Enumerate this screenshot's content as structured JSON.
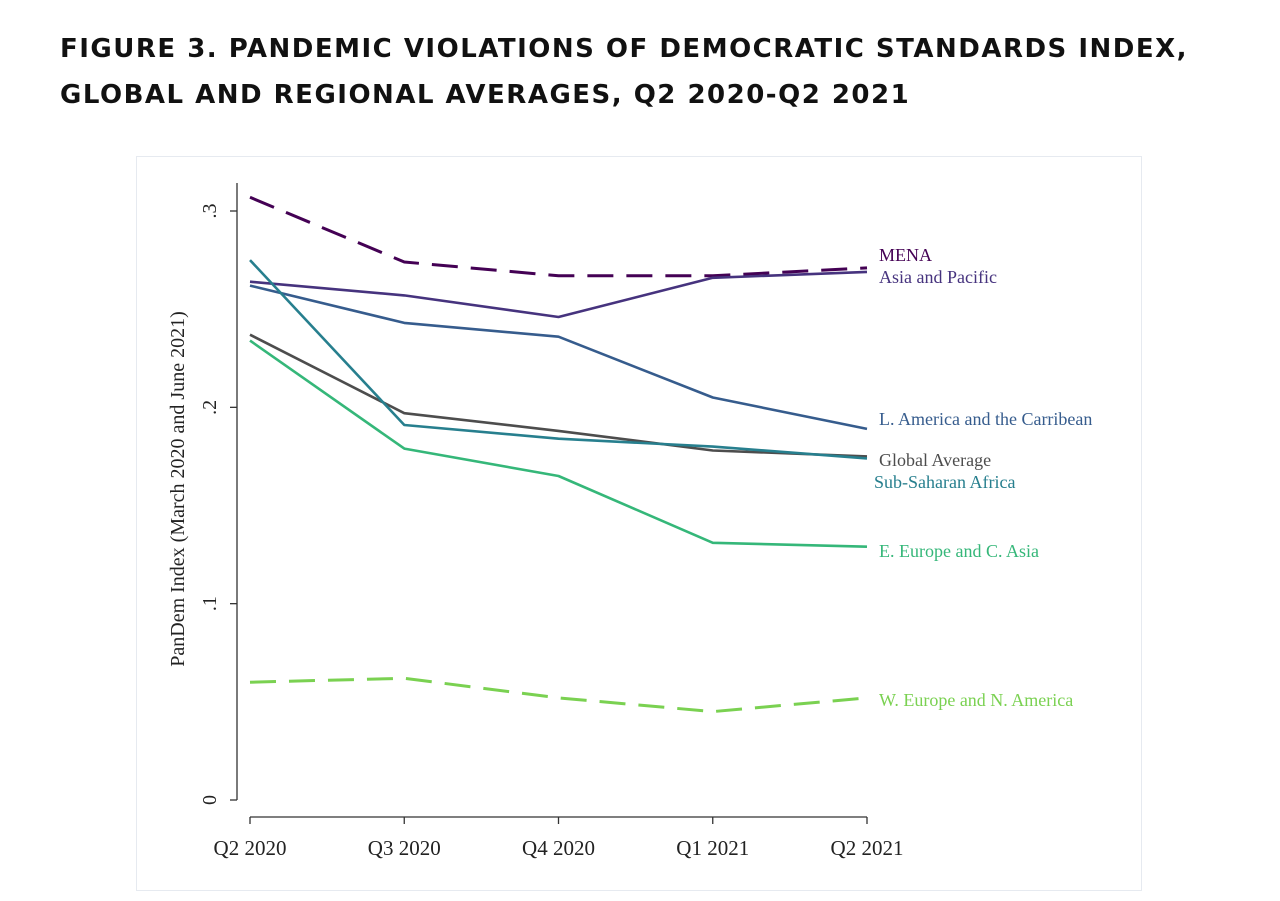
{
  "title_line1": "FIGURE 3. PANDEMIC VIOLATIONS OF DEMOCRATIC STANDARDS INDEX,",
  "title_line2": "GLOBAL AND REGIONAL AVERAGES, Q2 2020-Q2 2021",
  "chart_data": {
    "type": "line",
    "title": "FIGURE 3. PANDEMIC VIOLATIONS OF DEMOCRATIC STANDARDS INDEX, GLOBAL AND REGIONAL AVERAGES, Q2 2020-Q2 2021",
    "xlabel": "",
    "ylabel": "PanDem Index (March 2020 and June 2021)",
    "categories": [
      "Q2 2020",
      "Q3 2020",
      "Q4 2020",
      "Q1 2021",
      "Q2 2021"
    ],
    "ylim": [
      0,
      0.3
    ],
    "yticks": [
      0,
      0.1,
      0.2,
      0.3
    ],
    "ytick_labels": [
      "0",
      ".1",
      ".2",
      ".3"
    ],
    "grid": false,
    "legend": "direct labels at line ends",
    "series": [
      {
        "name": "MENA",
        "values": [
          0.307,
          0.274,
          0.267,
          0.267,
          0.271
        ],
        "color": "#440154",
        "dash": "dashed"
      },
      {
        "name": "Asia and Pacific",
        "values": [
          0.264,
          0.257,
          0.246,
          0.266,
          0.269
        ],
        "color": "#46337e",
        "dash": "solid"
      },
      {
        "name": "L. America and the Carribean",
        "values": [
          0.262,
          0.243,
          0.236,
          0.205,
          0.189
        ],
        "color": "#365c8d",
        "dash": "solid"
      },
      {
        "name": "Global Average",
        "values": [
          0.237,
          0.197,
          0.188,
          0.178,
          0.175
        ],
        "color": "#4d4d4d",
        "dash": "solid"
      },
      {
        "name": "Sub-Saharan Africa",
        "values": [
          0.275,
          0.191,
          0.184,
          0.18,
          0.174
        ],
        "color": "#277f8e",
        "dash": "solid"
      },
      {
        "name": "E. Europe and C. Asia",
        "values": [
          0.234,
          0.179,
          0.165,
          0.131,
          0.129
        ],
        "color": "#35b779",
        "dash": "solid"
      },
      {
        "name": "W. Europe and N. America",
        "values": [
          0.06,
          0.062,
          0.052,
          0.045,
          0.052
        ],
        "color": "#7ad151",
        "dash": "dashed"
      }
    ]
  }
}
